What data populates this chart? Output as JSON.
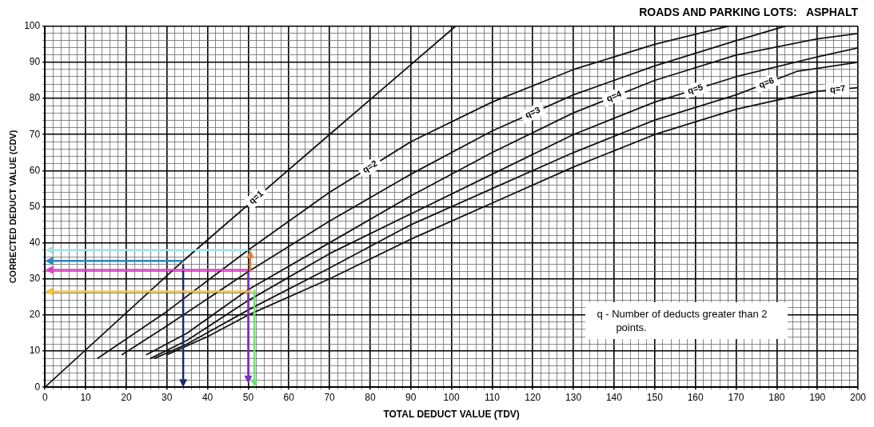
{
  "chart_data": {
    "type": "line",
    "title": "ROADS AND PARKING LOTS:   ASPHALT",
    "xlabel": "TOTAL DEDUCT VALUE (TDV)",
    "ylabel": "CORRECTED DEDUCT VALUE (CDV)",
    "annotations": [
      "q - Number of deducts greater than 2 points."
    ],
    "xlim": [
      0,
      200
    ],
    "ylim": [
      0,
      100
    ],
    "xticks": [
      0,
      {
        "value": 2,
        "label": null
      },
      {
        "value": 4,
        "label": null
      },
      {
        "value": 6,
        "label": null
      },
      {
        "value": 8,
        "label": null
      },
      10,
      {
        "value": 12,
        "label": null
      },
      {
        "value": 14,
        "label": null
      },
      {
        "value": 16,
        "label": null
      },
      {
        "value": 18,
        "label": null
      },
      20,
      {
        "value": 22,
        "label": null
      },
      {
        "value": 24,
        "label": null
      },
      {
        "value": 26,
        "label": null
      },
      {
        "value": 28,
        "label": null
      },
      30,
      {
        "value": 32,
        "label": null
      },
      {
        "value": 34,
        "label": null
      },
      {
        "value": 36,
        "label": null
      },
      {
        "value": 38,
        "label": null
      },
      40,
      {
        "value": 42,
        "label": null
      },
      {
        "value": 44,
        "label": null
      },
      {
        "value": 46,
        "label": null
      },
      {
        "value": 48,
        "label": null
      },
      50,
      {
        "value": 52,
        "label": null
      },
      {
        "value": 54,
        "label": null
      },
      {
        "value": 56,
        "label": null
      },
      {
        "value": 58,
        "label": null
      },
      60,
      {
        "value": 62,
        "label": null
      },
      {
        "value": 64,
        "label": null
      },
      {
        "value": 66,
        "label": null
      },
      {
        "value": 68,
        "label": null
      },
      70,
      {
        "value": 72,
        "label": null
      },
      {
        "value": 74,
        "label": null
      },
      {
        "value": 76,
        "label": null
      },
      {
        "value": 78,
        "label": null
      },
      80,
      {
        "value": 82,
        "label": null
      },
      {
        "value": 84,
        "label": null
      },
      {
        "value": 86,
        "label": null
      },
      {
        "value": 88,
        "label": null
      },
      90,
      {
        "value": 92,
        "label": null
      },
      {
        "value": 94,
        "label": null
      },
      {
        "value": 96,
        "label": null
      },
      {
        "value": 98,
        "label": null
      },
      100,
      {
        "value": 102,
        "label": null
      },
      {
        "value": 104,
        "label": null
      },
      {
        "value": 106,
        "label": null
      },
      {
        "value": 108,
        "label": null
      },
      110,
      {
        "value": 112,
        "label": null
      },
      {
        "value": 114,
        "label": null
      },
      {
        "value": 116,
        "label": null
      },
      {
        "value": 118,
        "label": null
      },
      120,
      {
        "value": 122,
        "label": null
      },
      {
        "value": 124,
        "label": null
      },
      {
        "value": 126,
        "label": null
      },
      {
        "value": 128,
        "label": null
      },
      130,
      {
        "value": 132,
        "label": null
      },
      {
        "value": 134,
        "label": null
      },
      {
        "value": 136,
        "label": null
      },
      {
        "value": 138,
        "label": null
      },
      140,
      {
        "value": 142,
        "label": null
      },
      {
        "value": 144,
        "label": null
      },
      {
        "value": 146,
        "label": null
      },
      {
        "value": 148,
        "label": null
      },
      150,
      {
        "value": 152,
        "label": null
      },
      {
        "value": 154,
        "label": null
      },
      {
        "value": 156,
        "label": null
      },
      {
        "value": 158,
        "label": null
      },
      160,
      {
        "value": 162,
        "label": null
      },
      {
        "value": 164,
        "label": null
      },
      {
        "value": 166,
        "label": null
      },
      {
        "value": 168,
        "label": null
      },
      170,
      {
        "value": 172,
        "label": null
      },
      {
        "value": 174,
        "label": null
      },
      {
        "value": 176,
        "label": null
      },
      {
        "value": 178,
        "label": null
      },
      180,
      {
        "value": 182,
        "label": null
      },
      {
        "value": 184,
        "label": null
      },
      {
        "value": 186,
        "label": null
      },
      {
        "value": 188,
        "label": null
      },
      190,
      {
        "value": 192,
        "label": null
      },
      {
        "value": 194,
        "label": null
      },
      {
        "value": 196,
        "label": null
      },
      {
        "value": 198,
        "label": null
      },
      200
    ],
    "yticks": [
      0,
      {
        "value": 2,
        "label": null
      },
      {
        "value": 4,
        "label": null
      },
      {
        "value": 6,
        "label": null
      },
      {
        "value": 8,
        "label": null
      },
      10,
      {
        "value": 12,
        "label": null
      },
      {
        "value": 14,
        "label": null
      },
      {
        "value": 16,
        "label": null
      },
      {
        "value": 18,
        "label": null
      },
      20,
      {
        "value": 22,
        "label": null
      },
      {
        "value": 24,
        "label": null
      },
      {
        "value": 26,
        "label": null
      },
      {
        "value": 28,
        "label": null
      },
      30,
      {
        "value": 32,
        "label": null
      },
      {
        "value": 34,
        "label": null
      },
      {
        "value": 36,
        "label": null
      },
      {
        "value": 38,
        "label": null
      },
      40,
      {
        "value": 42,
        "label": null
      },
      {
        "value": 44,
        "label": null
      },
      {
        "value": 46,
        "label": null
      },
      {
        "value": 48,
        "label": null
      },
      50,
      {
        "value": 52,
        "label": null
      },
      {
        "value": 54,
        "label": null
      },
      {
        "value": 56,
        "label": null
      },
      {
        "value": 58,
        "label": null
      },
      60,
      {
        "value": 62,
        "label": null
      },
      {
        "value": 64,
        "label": null
      },
      {
        "value": 66,
        "label": null
      },
      {
        "value": 68,
        "label": null
      },
      70,
      {
        "value": 72,
        "label": null
      },
      {
        "value": 74,
        "label": null
      },
      {
        "value": 76,
        "label": null
      },
      {
        "value": 78,
        "label": null
      },
      80,
      {
        "value": 82,
        "label": null
      },
      {
        "value": 84,
        "label": null
      },
      {
        "value": 86,
        "label": null
      },
      {
        "value": 88,
        "label": null
      },
      90,
      {
        "value": 92,
        "label": null
      },
      {
        "value": 94,
        "label": null
      },
      {
        "value": 96,
        "label": null
      },
      {
        "value": 98,
        "label": null
      },
      100
    ],
    "grid": true,
    "marker": "none",
    "line_style": "solid",
    "series": [
      {
        "name": "q=1",
        "color": "#111111",
        "x": [
          0,
          34,
          70,
          101
        ],
        "values": [
          0,
          35,
          70,
          100
        ]
      },
      {
        "name": "q=2",
        "color": "#111111",
        "x": [
          13,
          30,
          50,
          70,
          90,
          110,
          130,
          150,
          168
        ],
        "values": [
          8,
          21,
          38,
          54,
          68,
          79,
          88,
          95,
          100
        ]
      },
      {
        "name": "q=3",
        "color": "#111111",
        "x": [
          19,
          30,
          50,
          70,
          90,
          110,
          130,
          150,
          170,
          182
        ],
        "values": [
          9,
          17,
          32,
          46,
          59,
          71,
          81,
          89,
          96,
          100
        ]
      },
      {
        "name": "q=4",
        "color": "#111111",
        "x": [
          25,
          35,
          50,
          70,
          90,
          110,
          130,
          150,
          170,
          190,
          200
        ],
        "values": [
          9,
          15,
          27,
          40,
          53,
          65,
          76,
          85,
          92,
          96.5,
          98
        ]
      },
      {
        "name": "q=5",
        "color": "#111111",
        "x": [
          26,
          35,
          50,
          70,
          90,
          110,
          130,
          150,
          170,
          190,
          200
        ],
        "values": [
          8,
          13,
          24,
          37,
          48,
          59,
          70,
          79,
          86,
          91.5,
          94
        ]
      },
      {
        "name": "q=6",
        "color": "#111111",
        "x": [
          27,
          35,
          51,
          70,
          90,
          110,
          130,
          150,
          170,
          185,
          200
        ],
        "values": [
          8,
          12,
          22,
          33,
          45,
          55,
          65,
          74,
          81,
          87.5,
          90
        ]
      },
      {
        "name": "q=7",
        "color": "#111111",
        "x": [
          30,
          40,
          50,
          70,
          90,
          110,
          130,
          150,
          170,
          190,
          200
        ],
        "values": [
          9,
          14,
          20,
          30,
          41,
          51,
          61,
          70,
          77,
          82,
          83
        ]
      }
    ]
  }
}
